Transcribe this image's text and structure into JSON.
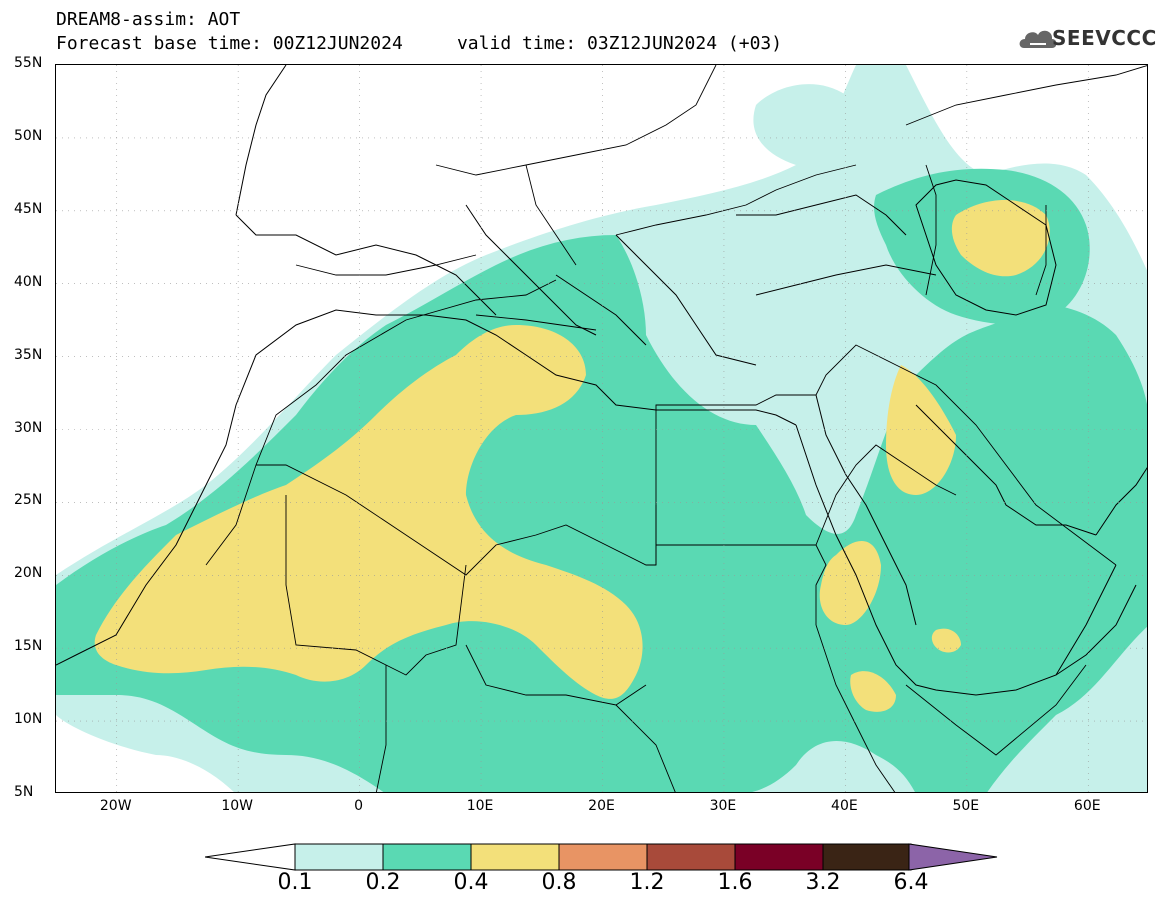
{
  "header": {
    "title_line1": "DREAM8-assim: AOT",
    "title_line2": "Forecast base time: 00Z12JUN2024     valid time: 03Z12JUN2024 (+03)",
    "logo_text": "SEEVCCC"
  },
  "map": {
    "lat_labels": [
      "55N",
      "50N",
      "45N",
      "40N",
      "35N",
      "30N",
      "25N",
      "20N",
      "15N",
      "10N",
      "5N"
    ],
    "lon_labels": [
      "20W",
      "10W",
      "0",
      "10E",
      "20E",
      "30E",
      "40E",
      "50E",
      "60E"
    ],
    "colors": {
      "c01": "#c6f0ea",
      "c02": "#5ad9b3",
      "c04": "#f3e07a",
      "c08": "#e89464",
      "c12": "#a84a3a",
      "c16": "#7a0026",
      "c32": "#3a2415",
      "c64": "#8c64a8",
      "border": "#000000"
    }
  },
  "legend": {
    "labels": [
      "0.1",
      "0.2",
      "0.4",
      "0.8",
      "1.2",
      "1.6",
      "3.2",
      "6.4"
    ],
    "colors": [
      "#c6f0ea",
      "#5ad9b3",
      "#f3e07a",
      "#e89464",
      "#a84a3a",
      "#7a0026",
      "#3a2415"
    ],
    "under_color": "#ffffff",
    "over_color": "#8c64a8"
  }
}
